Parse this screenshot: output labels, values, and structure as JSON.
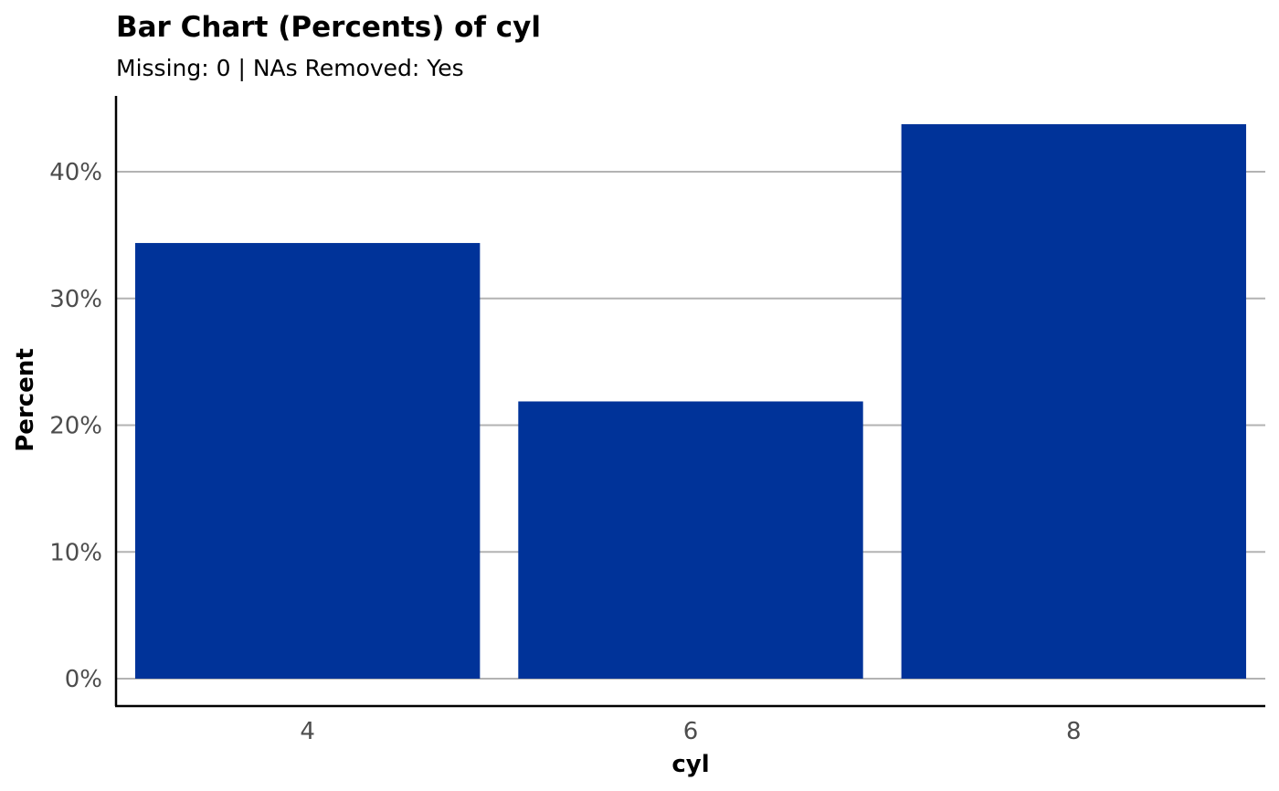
{
  "chart_data": {
    "type": "bar",
    "title": "Bar Chart (Percents) of cyl",
    "subtitle": "Missing: 0 | NAs Removed: Yes",
    "xlabel": "cyl",
    "ylabel": "Percent",
    "categories": [
      "4",
      "6",
      "8"
    ],
    "values": [
      34.375,
      21.875,
      43.75
    ],
    "ylim": [
      0,
      45.9
    ],
    "yticks": [
      0,
      10,
      20,
      30,
      40
    ],
    "ytick_labels": [
      "0%",
      "10%",
      "20%",
      "30%",
      "40%"
    ],
    "bar_color": "#003399",
    "grid": "horizontal major",
    "legend": "none"
  }
}
